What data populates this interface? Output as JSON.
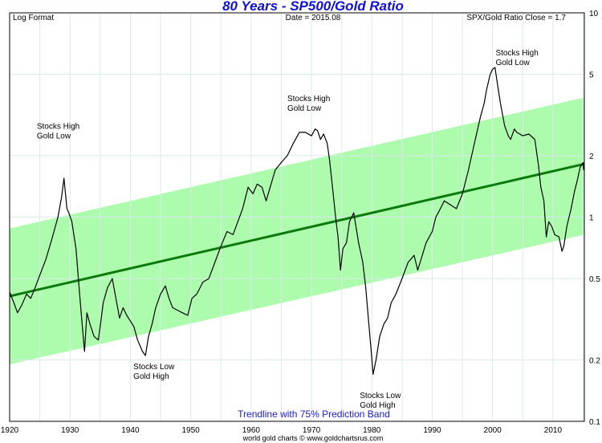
{
  "chart_data": {
    "type": "line",
    "title": "80 Years - SP500/Gold Ratio",
    "header_left": "Log Format",
    "header_center": "Date = 2015.08",
    "header_right": "SPX/Gold Ratio Close = 1.7",
    "band_caption": "Trendline with 75% Prediction Band",
    "footer": "world gold charts © www.goldchartsrus.com",
    "y_scale": "log",
    "ylim": [
      0.1,
      10
    ],
    "xlim": [
      1920,
      2015.2
    ],
    "x_ticks": [
      1920,
      1930,
      1940,
      1950,
      1960,
      1970,
      1980,
      1990,
      2000,
      2010
    ],
    "y_ticks": [
      {
        "value": 0.1,
        "label": "0.1"
      },
      {
        "value": 0.2,
        "label": "0.2"
      },
      {
        "value": 0.5,
        "label": "0.5"
      },
      {
        "value": 1,
        "label": "1"
      },
      {
        "value": 2,
        "label": "2"
      },
      {
        "value": 5,
        "label": "5"
      },
      {
        "value": 10,
        "label": "10"
      }
    ],
    "grid": true,
    "colors": {
      "title": "#1010d8",
      "band": "#adfcad",
      "trendline": "#0a7a0a",
      "series": "#000000",
      "caption": "#1a1ae0",
      "grid": "#d9eaea"
    },
    "trendline": {
      "start": [
        1920,
        0.41
      ],
      "end": [
        2015.2,
        1.82
      ]
    },
    "band": {
      "upper_start": [
        1920,
        0.88
      ],
      "upper_end": [
        2015.2,
        3.85
      ],
      "lower_start": [
        1920,
        0.19
      ],
      "lower_end": [
        2015.2,
        0.82
      ]
    },
    "annotations": [
      {
        "lines": [
          "Stocks High",
          "Gold Low"
        ],
        "x": 1924.5,
        "y": 2.7
      },
      {
        "lines": [
          "Stocks High",
          "Gold Low"
        ],
        "x": 1966,
        "y": 3.7
      },
      {
        "lines": [
          "Stocks High",
          "Gold Low"
        ],
        "x": 2000.5,
        "y": 6.2
      },
      {
        "lines": [
          "Stocks Low",
          "Gold High"
        ],
        "x": 1940.5,
        "y": 0.18
      },
      {
        "lines": [
          "Stocks Low",
          "Gold High"
        ],
        "x": 1978,
        "y": 0.13
      }
    ],
    "series": [
      {
        "x": [
          1920,
          1920.7,
          1921.3,
          1922,
          1922.8,
          1923.5,
          1924.2,
          1925,
          1926,
          1927,
          1928,
          1928.6,
          1929,
          1929.5,
          1929.8,
          1930.3,
          1931,
          1931.6,
          1932,
          1932.4,
          1932.8,
          1933.3,
          1934,
          1934.7,
          1935.5,
          1936.2,
          1937,
          1937.6,
          1938.2,
          1938.8,
          1939.4,
          1940,
          1940.6,
          1941.2,
          1942,
          1942.5,
          1943,
          1943.6,
          1944.2,
          1945,
          1945.8,
          1946.4,
          1947,
          1947.8,
          1948.6,
          1949.5,
          1950.2,
          1951,
          1952,
          1953,
          1954,
          1955,
          1956,
          1957,
          1957.8,
          1958.6,
          1959.5,
          1960.3,
          1961,
          1961.8,
          1962.5,
          1963.3,
          1964,
          1965,
          1966,
          1967,
          1968,
          1969,
          1970,
          1970.6,
          1971,
          1971.5,
          1972,
          1972.6,
          1973,
          1973.6,
          1974,
          1974.4,
          1974.8,
          1975.2,
          1975.8,
          1976.3,
          1977,
          1977.8,
          1978.5,
          1979,
          1979.5,
          1979.9,
          1980.2,
          1980.7,
          1981.3,
          1982,
          1982.6,
          1983.2,
          1984,
          1985,
          1986,
          1987,
          1987.6,
          1988,
          1989,
          1990,
          1990.6,
          1991,
          1992,
          1993,
          1994,
          1995,
          1996,
          1997,
          1998,
          1998.6,
          1999,
          1999.6,
          2000,
          2000.4,
          2000.8,
          2001.3,
          2002,
          2002.6,
          2003,
          2003.6,
          2004,
          2005,
          2006,
          2007,
          2007.6,
          2008,
          2008.5,
          2008.9,
          2009.3,
          2009.8,
          2010.3,
          2011,
          2011.5,
          2011.8,
          2012.3,
          2013,
          2013.6,
          2014,
          2014.5,
          2015,
          2015.08
        ],
        "y": [
          0.43,
          0.38,
          0.34,
          0.37,
          0.42,
          0.4,
          0.45,
          0.52,
          0.62,
          0.78,
          1.0,
          1.25,
          1.55,
          1.1,
          1.05,
          0.95,
          0.7,
          0.42,
          0.3,
          0.22,
          0.34,
          0.3,
          0.26,
          0.25,
          0.38,
          0.45,
          0.5,
          0.4,
          0.32,
          0.36,
          0.33,
          0.31,
          0.29,
          0.25,
          0.22,
          0.21,
          0.26,
          0.3,
          0.36,
          0.42,
          0.46,
          0.4,
          0.36,
          0.35,
          0.34,
          0.33,
          0.4,
          0.42,
          0.48,
          0.5,
          0.6,
          0.72,
          0.85,
          0.82,
          0.95,
          1.1,
          1.4,
          1.3,
          1.45,
          1.4,
          1.2,
          1.45,
          1.7,
          1.85,
          2.0,
          2.3,
          2.6,
          2.6,
          2.5,
          2.7,
          2.65,
          2.4,
          2.55,
          2.3,
          1.9,
          1.3,
          1.0,
          0.8,
          0.55,
          0.7,
          0.75,
          0.95,
          1.05,
          0.75,
          0.6,
          0.45,
          0.3,
          0.22,
          0.17,
          0.2,
          0.26,
          0.3,
          0.32,
          0.38,
          0.42,
          0.5,
          0.6,
          0.65,
          0.55,
          0.6,
          0.75,
          0.85,
          1.0,
          1.05,
          1.2,
          1.15,
          1.1,
          1.3,
          1.7,
          2.3,
          3.1,
          3.6,
          4.2,
          5.0,
          5.3,
          5.4,
          4.5,
          3.6,
          2.8,
          2.5,
          2.4,
          2.7,
          2.6,
          2.5,
          2.55,
          2.4,
          1.8,
          1.4,
          1.2,
          0.8,
          0.95,
          0.9,
          0.82,
          0.8,
          0.68,
          0.72,
          0.9,
          1.1,
          1.35,
          1.5,
          1.75,
          1.85,
          1.7
        ]
      }
    ]
  }
}
